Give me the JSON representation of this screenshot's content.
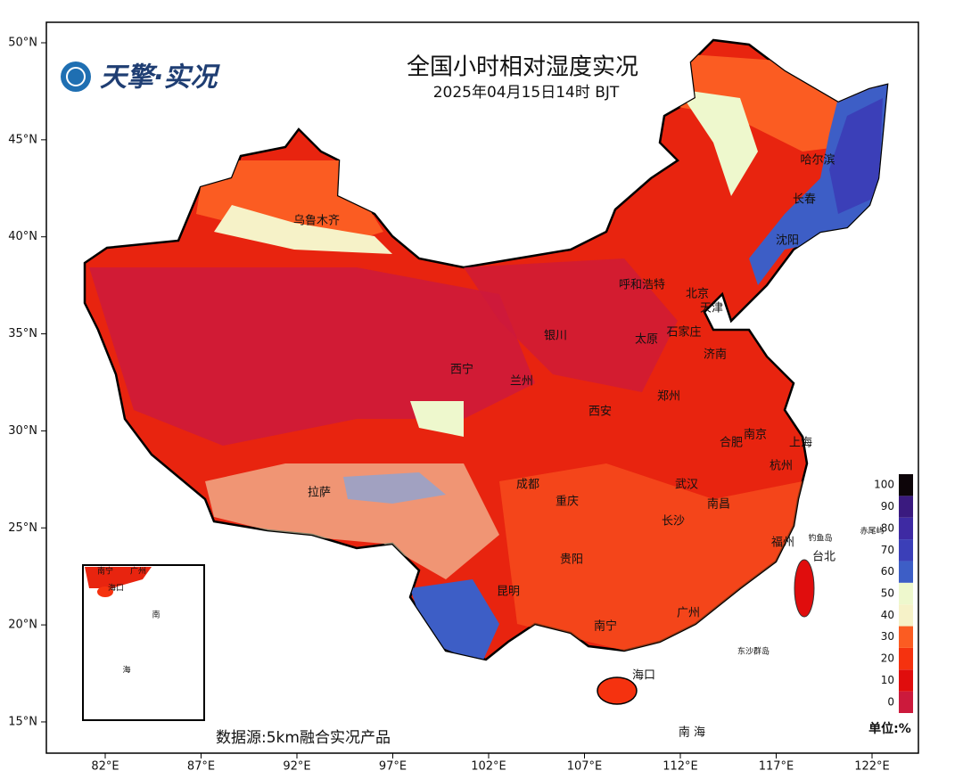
{
  "header": {
    "logo": "天擎·实况",
    "title": "全国小时相对湿度实况",
    "subtitle": "2025年04月15日14时  BJT"
  },
  "axes": {
    "lat_ticks": [
      {
        "value": 50,
        "label": "50°N"
      },
      {
        "value": 45,
        "label": "45°N"
      },
      {
        "value": 40,
        "label": "40°N"
      },
      {
        "value": 35,
        "label": "35°N"
      },
      {
        "value": 30,
        "label": "30°N"
      },
      {
        "value": 25,
        "label": "25°N"
      },
      {
        "value": 20,
        "label": "20°N"
      },
      {
        "value": 15,
        "label": "15°N"
      }
    ],
    "lon_ticks": [
      {
        "value": 82,
        "label": "82°E"
      },
      {
        "value": 87,
        "label": "87°E"
      },
      {
        "value": 92,
        "label": "92°E"
      },
      {
        "value": 97,
        "label": "97°E"
      },
      {
        "value": 102,
        "label": "102°E"
      },
      {
        "value": 107,
        "label": "107°E"
      },
      {
        "value": 112,
        "label": "112°E"
      },
      {
        "value": 117,
        "label": "117°E"
      },
      {
        "value": 122,
        "label": "122°E"
      }
    ]
  },
  "cities": [
    "乌鲁木齐",
    "哈尔滨",
    "长春",
    "沈阳",
    "呼和浩特",
    "北京",
    "天津",
    "银川",
    "太原",
    "石家庄",
    "济南",
    "西宁",
    "兰州",
    "郑州",
    "西安",
    "南京",
    "合肥",
    "上海",
    "杭州",
    "拉萨",
    "成都",
    "重庆",
    "武汉",
    "南昌",
    "长沙",
    "福州",
    "台北",
    "贵阳",
    "昆明",
    "南宁",
    "广州",
    "海口"
  ],
  "islands": [
    "钓鱼岛",
    "赤尾屿",
    "东沙群岛"
  ],
  "sea_label": "南 海",
  "inset": {
    "labels": [
      "南宁",
      "广州",
      "海口",
      "南",
      "海"
    ]
  },
  "colorbar": {
    "ticks": [
      0,
      10,
      20,
      30,
      40,
      50,
      60,
      70,
      80,
      90,
      100
    ],
    "colors": [
      "#cc1a3c",
      "#e00d0d",
      "#f5320f",
      "#fb5c22",
      "#f6f2c8",
      "#eef8cd",
      "#3d5ec6",
      "#3b3fb8",
      "#3e2aa3",
      "#3a1a7f",
      "#0d0509"
    ],
    "unit": "单位:%"
  },
  "source": "数据源:5km融合实况产品"
}
